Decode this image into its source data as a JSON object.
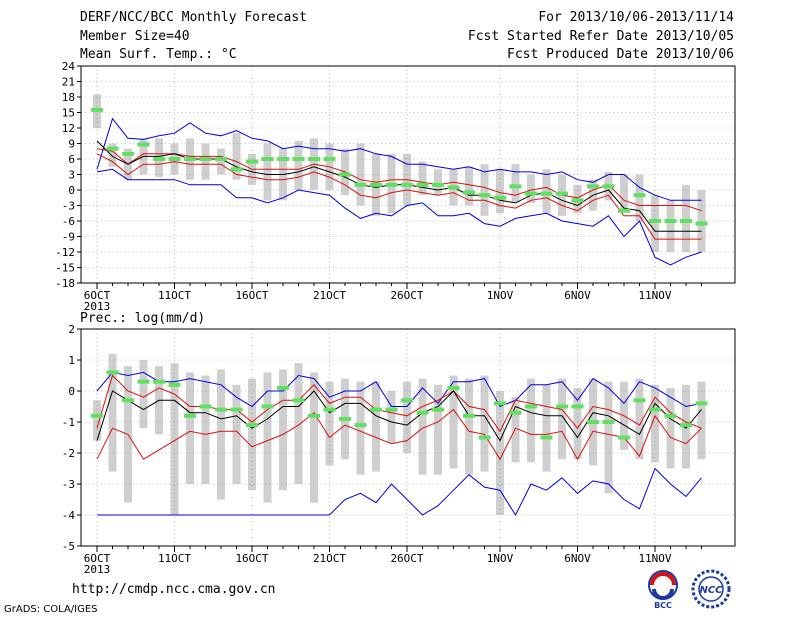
{
  "header": {
    "title": "DERF/NCC/BCC Monthly Forecast",
    "member_size": "Member Size=40",
    "variable1": "Mean Surf. Temp.: °C",
    "period": "For 2013/10/06-2013/11/14",
    "start_date": "Fcst Started Refer Date 2013/10/05",
    "produced_date": "Fcst Produced Date 2013/10/06"
  },
  "precip_title": "Prec.: log(mm/d)",
  "footer": {
    "url": "http://cmdp.ncc.cma.gov.cn",
    "credit": "GrADS: COLA/IGES",
    "logo1_text": "BCC",
    "logo2_text": "NCC"
  },
  "colors": {
    "envelope": "#0000e0",
    "ci": "#d81010",
    "mean": "#000000",
    "box": "#cfcfcf",
    "median": "#60e060",
    "grid": "#888888"
  },
  "chart_data": [
    {
      "type": "line",
      "name": "Mean Surf. Temp.",
      "x_ticks": [
        "6OCT\n2013",
        "11OCT",
        "16OCT",
        "21OCT",
        "26OCT",
        "1NOV",
        "6NOV",
        "11NOV"
      ],
      "x_tick_days": [
        0,
        5,
        10,
        15,
        20,
        26,
        31,
        36
      ],
      "days": 40,
      "ylim": [
        -18,
        24
      ],
      "yticks": [
        -18,
        -15,
        -12,
        -9,
        -6,
        -3,
        0,
        3,
        6,
        9,
        12,
        15,
        18,
        21,
        24
      ],
      "grid": true,
      "series": [
        {
          "role": "max",
          "values": [
            4,
            13.8,
            10,
            9.8,
            10.5,
            11,
            13,
            11,
            10.5,
            11.5,
            10,
            9.5,
            8,
            8.5,
            8,
            8,
            7.5,
            8,
            7,
            6.5,
            5,
            5,
            4.5,
            4,
            4.5,
            3.5,
            4,
            3.5,
            3.5,
            3,
            3.5,
            2,
            1.5,
            3,
            3,
            0.5,
            -1,
            -2,
            -2,
            -2
          ]
        },
        {
          "role": "ci_high",
          "values": [
            8,
            7.5,
            5,
            7,
            7,
            7,
            6.5,
            6.5,
            6.5,
            5.5,
            4,
            4,
            4,
            4,
            5,
            4.5,
            3.5,
            2,
            1.5,
            2,
            2,
            1.5,
            1,
            1.5,
            1,
            0.5,
            -0.5,
            -1,
            0,
            0.5,
            -1,
            -1.5,
            0,
            1,
            -2,
            -3,
            -3,
            -3,
            -3,
            -4
          ]
        },
        {
          "role": "mean",
          "values": [
            9.5,
            6.5,
            5,
            6.5,
            6.5,
            7,
            6,
            6,
            6,
            4.5,
            3.5,
            3,
            3,
            3.5,
            4.5,
            3.5,
            2.5,
            1,
            0.5,
            1,
            1,
            0.5,
            0,
            0.5,
            -1,
            -1,
            -2,
            -2.5,
            -1,
            -0.5,
            -2,
            -3,
            -1,
            0,
            -3.5,
            -4,
            -8,
            -8,
            -8,
            -8
          ]
        },
        {
          "role": "ci_low",
          "values": [
            7,
            5.5,
            3,
            5,
            5,
            5.5,
            5,
            5,
            5,
            3,
            2.5,
            2,
            2,
            2.5,
            3.5,
            2.5,
            1,
            -1,
            -1.5,
            -0.5,
            0,
            -0.5,
            -1,
            -0.5,
            -2,
            -2,
            -3,
            -3.5,
            -2,
            -1.5,
            -3,
            -4,
            -2,
            -1,
            -5,
            -5,
            -9.5,
            -9.5,
            -9.5,
            -9.5
          ]
        },
        {
          "role": "min",
          "values": [
            3.5,
            4,
            2,
            2,
            2,
            2,
            1,
            1,
            1,
            -1.5,
            -1.5,
            -2.5,
            -1.5,
            0,
            -0.5,
            -1,
            -3.5,
            -5.5,
            -4.5,
            -5,
            -3,
            -2.5,
            -5,
            -5,
            -4.5,
            -6.5,
            -7,
            -5.5,
            -5,
            -4.5,
            -6,
            -6.5,
            -7,
            -5,
            -9,
            -6,
            -13,
            -14.5,
            -13,
            -12
          ]
        },
        {
          "role": "box_top",
          "values": [
            18.5,
            9,
            8,
            10,
            10,
            9,
            10,
            9,
            8,
            11,
            7,
            9,
            8,
            9.5,
            10,
            9,
            8,
            9,
            7,
            7,
            7,
            5.5,
            4,
            4,
            4.5,
            5,
            4,
            5,
            3,
            4,
            3,
            1,
            2,
            3.5,
            3,
            3,
            -1,
            -2,
            1,
            0
          ]
        },
        {
          "role": "box_bottom",
          "values": [
            12,
            4.5,
            2,
            3,
            2.5,
            3,
            2,
            2,
            3,
            2,
            1,
            -2,
            -2,
            0,
            0,
            0,
            -1,
            -3,
            -5,
            -4.5,
            -3,
            -1,
            -1,
            -3,
            -3,
            -5,
            -4.5,
            -2.5,
            -2.5,
            -4.5,
            -5,
            -4.5,
            -4,
            -2,
            -4,
            -6,
            -12,
            -12,
            -12,
            -12
          ]
        },
        {
          "role": "median",
          "values": [
            15.5,
            8,
            7,
            8.8,
            6,
            6,
            6,
            6,
            6,
            4,
            5.5,
            6,
            6,
            6,
            6,
            6,
            3,
            1,
            1,
            1,
            1,
            1,
            1,
            0.5,
            -0.5,
            -1,
            -1.5,
            0.7,
            -0.7,
            -0.7,
            -0.7,
            -2,
            0.7,
            0.7,
            -4,
            -1,
            -6,
            -6,
            -6,
            -6.5
          ]
        }
      ]
    },
    {
      "type": "line",
      "name": "Prec.",
      "ylabel": "log(mm/d)",
      "x_ticks": [
        "6OCT\n2013",
        "11OCT",
        "16OCT",
        "21OCT",
        "26OCT",
        "1NOV",
        "6NOV",
        "11NOV"
      ],
      "x_tick_days": [
        0,
        5,
        10,
        15,
        20,
        26,
        31,
        36
      ],
      "days": 40,
      "ylim": [
        -5,
        2
      ],
      "yticks": [
        -5,
        -4,
        -3,
        -2,
        -1,
        0,
        1,
        2
      ],
      "grid": true,
      "series": [
        {
          "role": "max",
          "values": [
            0,
            0.6,
            0.5,
            0.6,
            0.3,
            0.3,
            0.4,
            0.3,
            0.2,
            -0.2,
            -0.5,
            0,
            0,
            0.5,
            0.4,
            -0.2,
            0,
            0,
            0.3,
            -0.5,
            -0.5,
            0.1,
            -0.4,
            0.3,
            0.3,
            0.4,
            -0.5,
            -0.3,
            0.2,
            0.2,
            0.3,
            -0.3,
            0.4,
            0.1,
            -0.4,
            0.3,
            0.1,
            -0.2,
            -0.5,
            -0.4
          ]
        },
        {
          "role": "ci_high",
          "values": [
            -1.2,
            0.5,
            0,
            -0.2,
            0.1,
            -0.1,
            -0.5,
            -0.5,
            -0.6,
            -0.6,
            -1,
            -0.6,
            -0.3,
            -0.3,
            0.2,
            -0.4,
            -0.2,
            -0.2,
            -0.6,
            -0.7,
            -0.8,
            -0.5,
            -0.3,
            0,
            -0.5,
            -0.6,
            -1.3,
            -0.3,
            -0.4,
            -0.5,
            -0.6,
            -1.2,
            -0.5,
            -0.6,
            -0.8,
            -1.1,
            -0.2,
            -0.7,
            -1,
            -1.2
          ]
        },
        {
          "role": "mean",
          "values": [
            -1.6,
            0,
            -0.3,
            -0.6,
            -0.3,
            -0.3,
            -0.7,
            -0.7,
            -0.9,
            -0.8,
            -1.2,
            -0.9,
            -0.5,
            -0.5,
            0,
            -0.7,
            -0.4,
            -0.4,
            -0.8,
            -1,
            -1.1,
            -0.7,
            -0.5,
            0,
            -0.8,
            -0.8,
            -1.6,
            -0.5,
            -0.7,
            -0.8,
            -0.8,
            -1.5,
            -0.7,
            -0.8,
            -1.1,
            -1.4,
            -0.4,
            -0.9,
            -1.2,
            -0.6
          ]
        },
        {
          "role": "ci_low",
          "values": [
            -2.2,
            -1.2,
            -1.4,
            -2.2,
            -1.9,
            -1.6,
            -1.3,
            -1.4,
            -1.3,
            -1.3,
            -1.8,
            -1.6,
            -1.4,
            -1.1,
            -0.7,
            -1.5,
            -1.1,
            -1.3,
            -1.5,
            -1.7,
            -1.6,
            -1.2,
            -1.0,
            -0.6,
            -1.3,
            -1.4,
            -2.2,
            -1.2,
            -1.4,
            -1.4,
            -1.3,
            -2.2,
            -1.3,
            -1.4,
            -1.5,
            -2.1,
            -0.8,
            -1.5,
            -1.7,
            -1.2
          ]
        },
        {
          "role": "min",
          "values": [
            -4,
            -4,
            -4,
            -4,
            -4,
            -4,
            -4,
            -4,
            -4,
            -4,
            -4,
            -4,
            -4,
            -4,
            -4,
            -4,
            -3.5,
            -3.3,
            -3.6,
            -3,
            -3.5,
            -4,
            -3.7,
            -3.2,
            -2.7,
            -3.1,
            -3.2,
            -4,
            -3,
            -3.2,
            -2.8,
            -3.3,
            -2.9,
            -3,
            -3.5,
            -3.8,
            -2.5,
            -3,
            -3.4,
            -2.8
          ]
        },
        {
          "role": "box_top",
          "values": [
            -0.3,
            1.2,
            0.8,
            1,
            0.8,
            0.9,
            0.6,
            0.5,
            0.7,
            0.2,
            0.4,
            0.6,
            0.7,
            0.9,
            0.6,
            0.3,
            0.4,
            0.3,
            0.3,
            0,
            0.3,
            0.4,
            0.2,
            0.5,
            0.4,
            0.5,
            0,
            -0.2,
            0.4,
            0.2,
            0.4,
            0.1,
            0.4,
            0.3,
            0.3,
            0.4,
            0.2,
            0.1,
            0.2,
            0.3
          ]
        },
        {
          "role": "box_bottom",
          "values": [
            -1.6,
            -2.6,
            -3.6,
            -1.2,
            -1.4,
            -4,
            -3,
            -3,
            -3.5,
            -3,
            -3.2,
            -3.6,
            -3.2,
            -3,
            -3.6,
            -2.4,
            -2.2,
            -2.7,
            -2.6,
            -1.7,
            -2,
            -2.7,
            -2.7,
            -2.5,
            -2.7,
            -2.6,
            -4,
            -2.3,
            -2.3,
            -2.6,
            -2.2,
            -2.2,
            -2.4,
            -3.3,
            -1.9,
            -2.2,
            -2.3,
            -2.5,
            -2.5,
            -2.2
          ]
        },
        {
          "role": "median",
          "values": [
            -0.8,
            0.6,
            -0.3,
            0.3,
            0.3,
            0.2,
            -0.8,
            -0.5,
            -0.6,
            -0.6,
            -1.1,
            -0.5,
            0.1,
            -0.3,
            -0.8,
            -0.6,
            -0.9,
            -1.1,
            -0.6,
            -0.6,
            -0.3,
            -0.7,
            -0.6,
            0.1,
            -0.8,
            -1.5,
            -0.4,
            -0.7,
            -0.5,
            -1.5,
            -0.5,
            -0.5,
            -1,
            -1,
            -1.5,
            -0.3,
            -0.6,
            -0.8,
            -1.1,
            -0.4
          ]
        }
      ]
    }
  ]
}
